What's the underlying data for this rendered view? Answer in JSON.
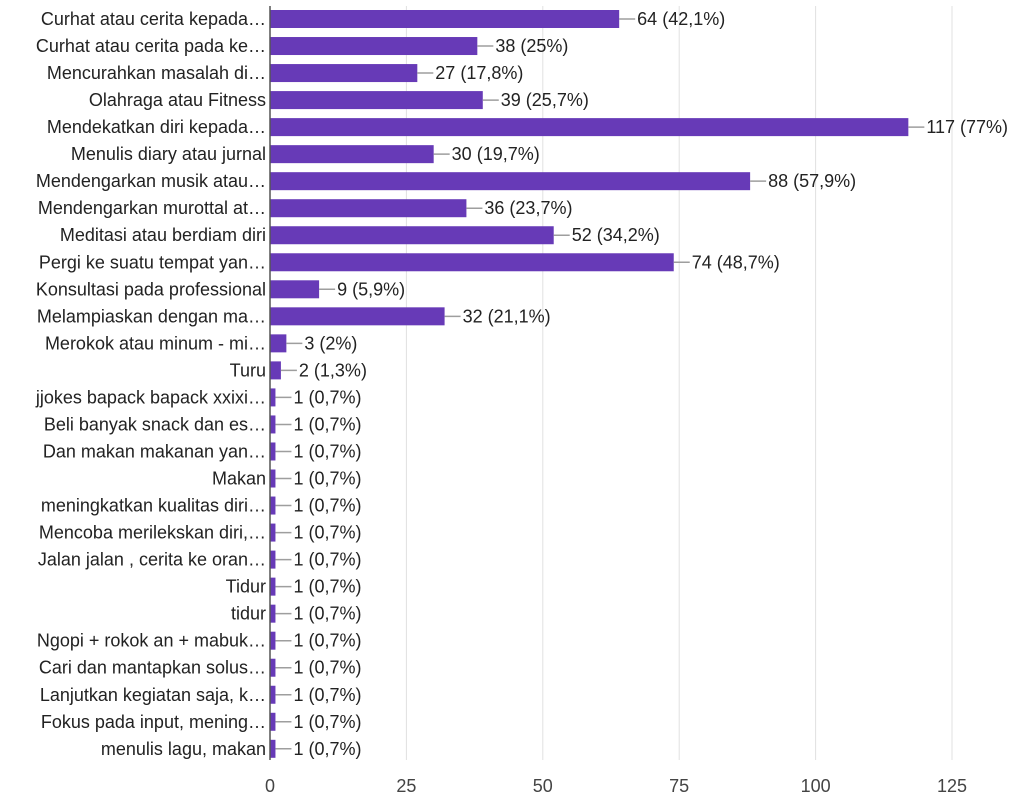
{
  "colors": {
    "bar": "#673ab7",
    "grid": "#e0e0e0",
    "axis": "#555555",
    "leader": "#9e9e9e"
  },
  "chart_data": {
    "type": "bar",
    "orientation": "horizontal",
    "categories": [
      "Curhat atau cerita kepada…",
      "Curhat atau cerita pada ke…",
      "Mencurahkan masalah di…",
      "Olahraga atau Fitness",
      "Mendekatkan diri kepada…",
      "Menulis diary atau jurnal",
      "Mendengarkan musik atau…",
      "Mendengarkan murottal at…",
      "Meditasi atau berdiam diri",
      "Pergi ke suatu tempat yan…",
      "Konsultasi pada professional",
      "Melampiaskan dengan ma…",
      "Merokok atau minum - mi…",
      "Turu",
      "jjokes bapack bapack xxixi…",
      "Beli banyak snack dan es…",
      "Dan makan makanan yan…",
      "Makan",
      "meningkatkan kualitas diri…",
      "Mencoba merilekskan diri,…",
      "Jalan jalan , cerita ke oran…",
      "Tidur",
      "tidur",
      "Ngopi + rokok an + mabuk…",
      "Cari dan mantapkan solus…",
      "Lanjutkan kegiatan saja, k…",
      "Fokus pada input, mening…",
      "menulis lagu, makan"
    ],
    "values": [
      64,
      38,
      27,
      39,
      117,
      30,
      88,
      36,
      52,
      74,
      9,
      32,
      3,
      2,
      1,
      1,
      1,
      1,
      1,
      1,
      1,
      1,
      1,
      1,
      1,
      1,
      1,
      1
    ],
    "value_labels": [
      "64 (42,1%)",
      "38 (25%)",
      "27 (17,8%)",
      "39 (25,7%)",
      "117 (77%)",
      "30 (19,7%)",
      "88 (57,9%)",
      "36 (23,7%)",
      "52 (34,2%)",
      "74 (48,7%)",
      "9 (5,9%)",
      "32 (21,1%)",
      "3 (2%)",
      "2 (1,3%)",
      "1 (0,7%)",
      "1 (0,7%)",
      "1 (0,7%)",
      "1 (0,7%)",
      "1 (0,7%)",
      "1 (0,7%)",
      "1 (0,7%)",
      "1 (0,7%)",
      "1 (0,7%)",
      "1 (0,7%)",
      "1 (0,7%)",
      "1 (0,7%)",
      "1 (0,7%)",
      "1 (0,7%)"
    ],
    "xlim": [
      0,
      125
    ],
    "xticks": [
      0,
      25,
      50,
      75,
      100,
      125
    ],
    "xtick_labels": [
      "0",
      "25",
      "50",
      "75",
      "100",
      "125"
    ],
    "grid": true
  }
}
